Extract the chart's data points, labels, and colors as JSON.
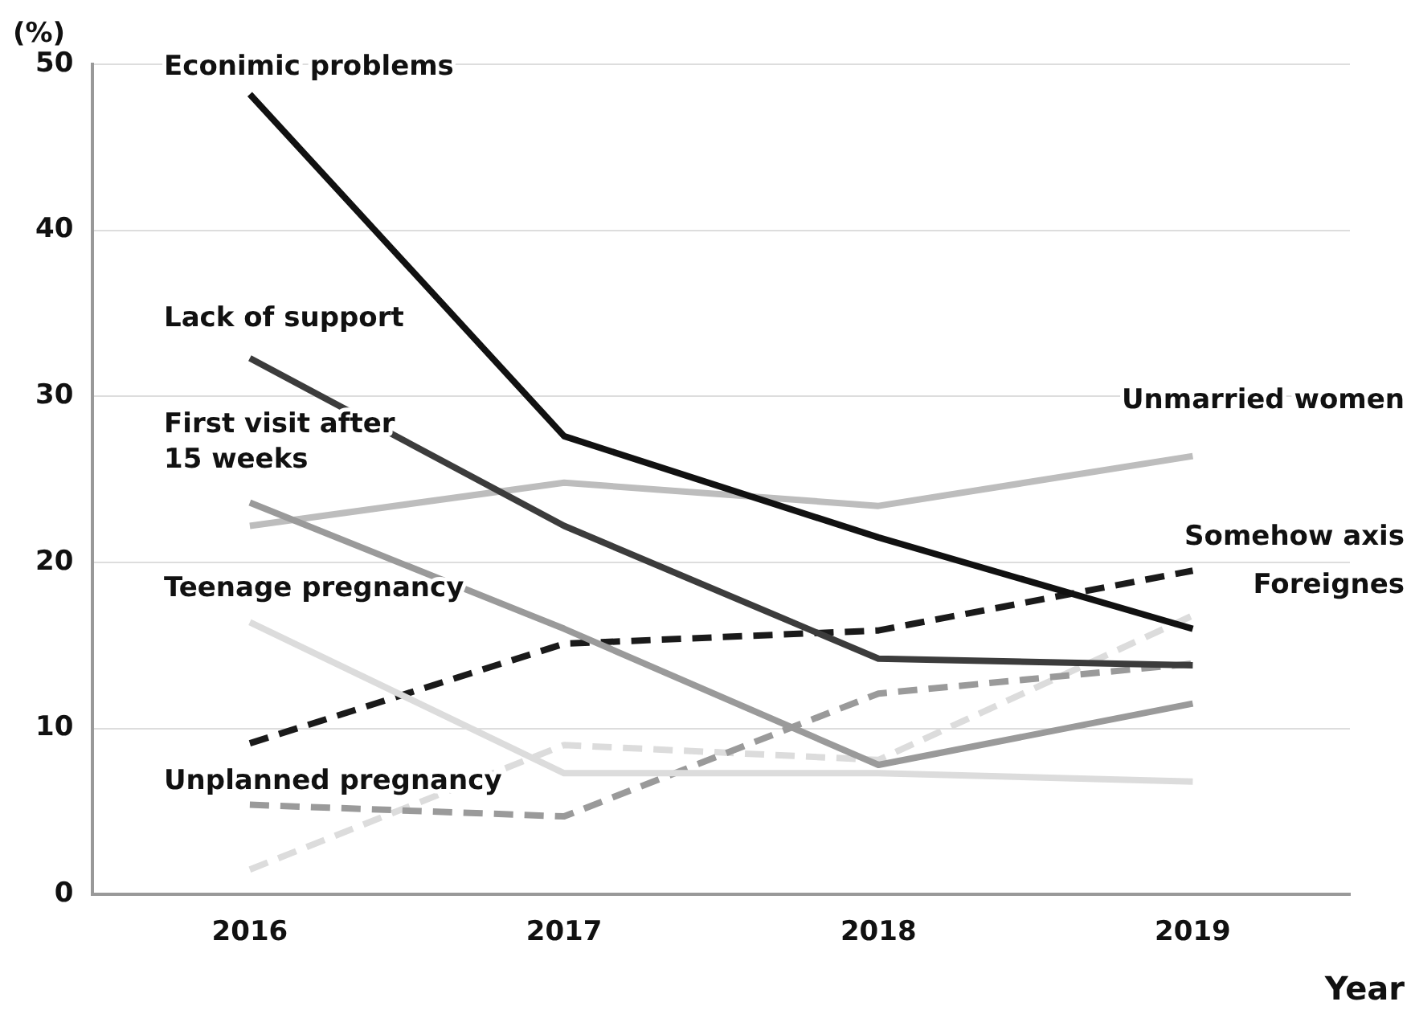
{
  "chart_data": {
    "type": "line",
    "ylabel": "(%)",
    "xlabel": "Year",
    "categories": [
      "2016",
      "2017",
      "2018",
      "2019"
    ],
    "ylim": [
      0,
      50
    ],
    "yticks": [
      0,
      10,
      20,
      30,
      40,
      50
    ],
    "grid": "y",
    "legend": false,
    "marker": "none",
    "series": [
      {
        "name": "Econimic problems",
        "color": "#111111",
        "line_style": "solid",
        "values": [
          48.2,
          27.6,
          21.5,
          16.0
        ]
      },
      {
        "name": "Lack of support",
        "color": "#3c3c3c",
        "line_style": "solid",
        "values": [
          32.3,
          22.2,
          14.2,
          13.8
        ]
      },
      {
        "name": "First visit after 15 weeks",
        "color": "#9a9a9a",
        "line_style": "solid",
        "values": [
          23.6,
          16.0,
          7.8,
          11.5
        ]
      },
      {
        "name": "Teenage pregnancy",
        "color": "#dcdcdc",
        "line_style": "solid",
        "values": [
          16.4,
          7.3,
          7.3,
          6.8
        ]
      },
      {
        "name": "Unplanned pregnancy",
        "color": "#9a9a9a",
        "line_style": "dashed",
        "values": [
          5.4,
          4.7,
          12.1,
          13.9
        ]
      },
      {
        "name": "Unmarried women",
        "color": "#bdbdbd",
        "line_style": "solid",
        "values": [
          22.2,
          24.8,
          23.4,
          26.4
        ]
      },
      {
        "name": "Somehow axis",
        "color": "#1a1a1a",
        "line_style": "dashed",
        "values": [
          9.1,
          15.1,
          15.9,
          19.5
        ]
      },
      {
        "name": "Foreignes",
        "color": "#dcdcdc",
        "line_style": "dashed",
        "values": [
          1.5,
          9.0,
          8.1,
          16.8
        ]
      }
    ]
  }
}
